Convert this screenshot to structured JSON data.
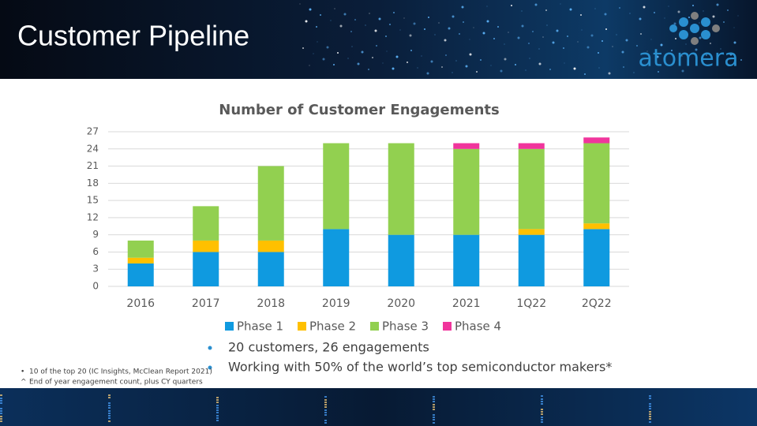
{
  "header": {
    "title": "Customer Pipeline",
    "logo": "atomera"
  },
  "chart_data": {
    "type": "stacked_bar",
    "title": "Number of Customer Engagements",
    "categories": [
      "2016",
      "2017",
      "2018",
      "2019",
      "2020",
      "2021",
      "1Q22",
      "2Q22"
    ],
    "series": [
      {
        "name": "Phase 1",
        "color": "#0f9ae0",
        "values": [
          4,
          6,
          6,
          10,
          9,
          9,
          9,
          10
        ]
      },
      {
        "name": "Phase 2",
        "color": "#ffc000",
        "values": [
          1,
          2,
          2,
          0,
          0,
          0,
          1,
          1
        ]
      },
      {
        "name": "Phase 3",
        "color": "#92d050",
        "values": [
          3,
          6,
          13,
          15,
          16,
          15,
          14,
          14
        ]
      },
      {
        "name": "Phase 4",
        "color": "#f0359c",
        "values": [
          0,
          0,
          0,
          0,
          0,
          1,
          1,
          1
        ]
      }
    ],
    "ylim": [
      0,
      27
    ],
    "yticks": [
      0,
      3,
      6,
      9,
      12,
      15,
      18,
      21,
      24,
      27
    ],
    "grid": true,
    "legend": "bottom"
  },
  "bullets": [
    "20 customers, 26 engagements",
    "Working with 50% of the world’s top semiconductor makers*"
  ],
  "footnotes": [
    {
      "marker": "•",
      "text": "10 of the top 20 (IC Insights, McClean Report 2021)"
    },
    {
      "marker": "^",
      "text": "End of year engagement count, plus CY quarters"
    }
  ]
}
